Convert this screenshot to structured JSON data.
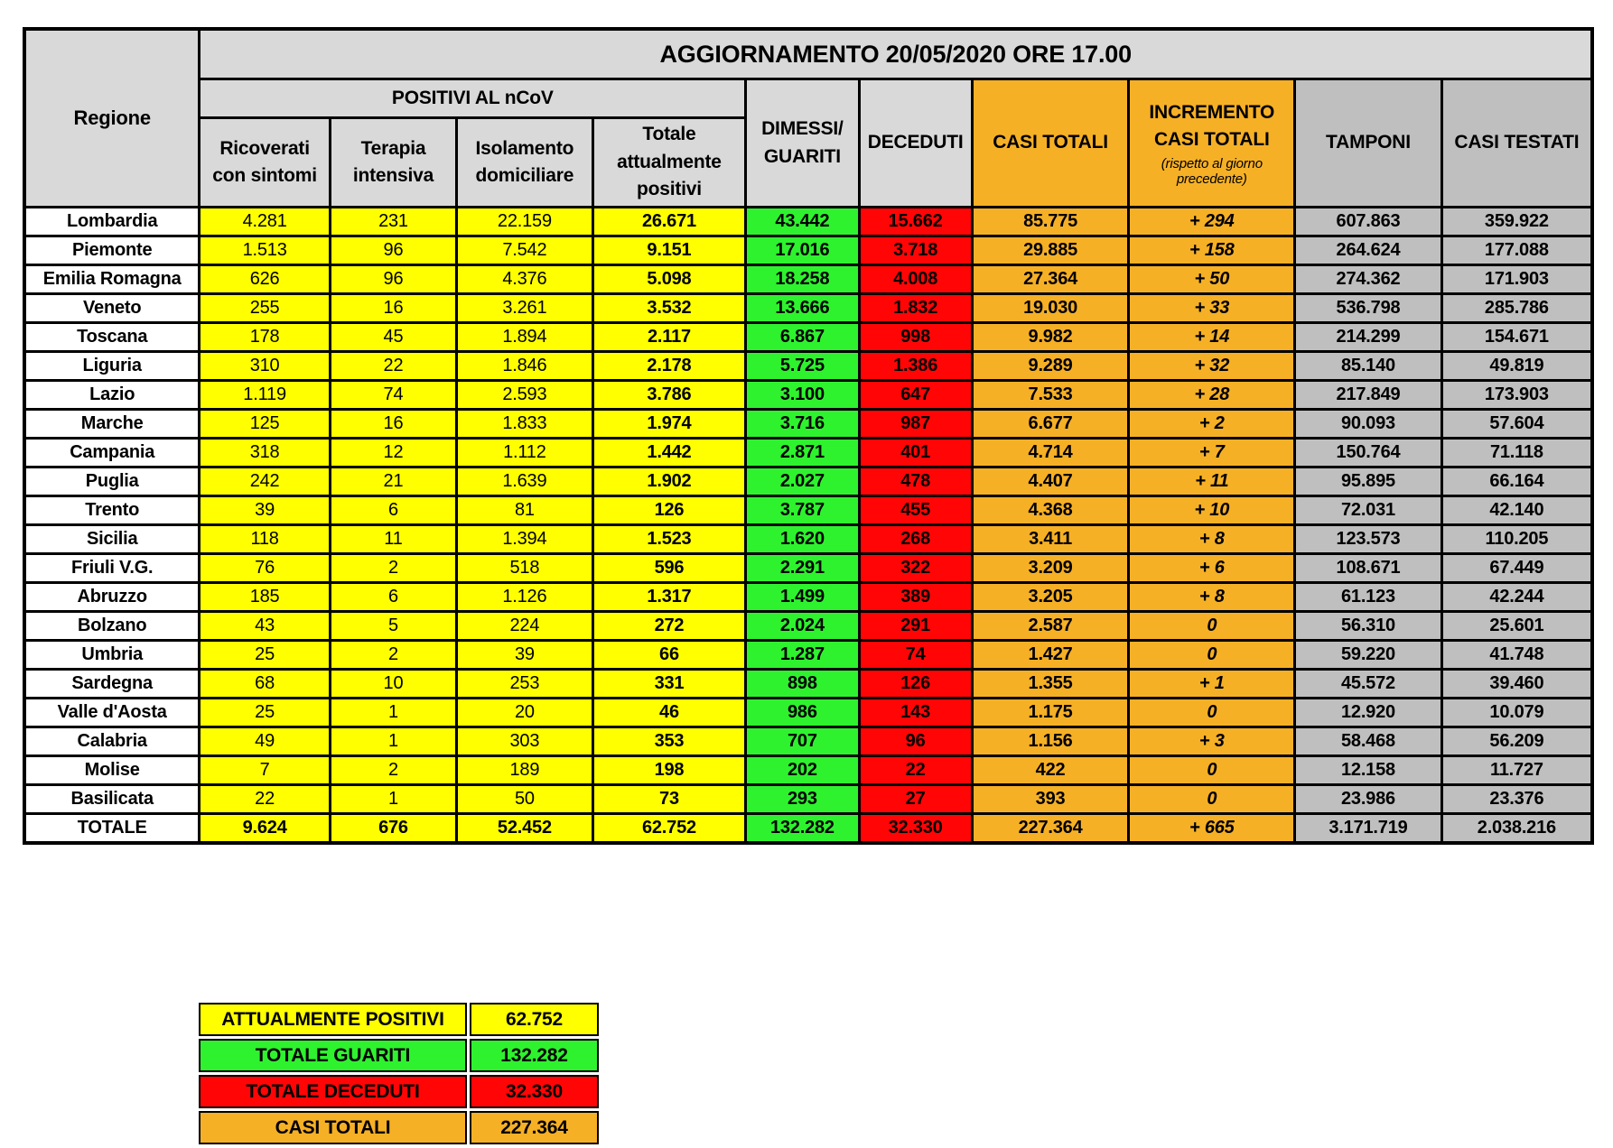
{
  "title": "AGGIORNAMENTO 20/05/2020 ORE 17.00",
  "colors": {
    "yellow": "#FFFF00",
    "green": "#2EF22E",
    "red": "#FF0505",
    "orange": "#F6B026",
    "light_gray": "#D9D9D9",
    "mid_gray": "#BFBFBF",
    "border": "#000000"
  },
  "headers": {
    "regione": "Regione",
    "positivi_group": "POSITIVI AL nCoV",
    "ricoverati": "Ricoverati con sintomi",
    "terapia": "Terapia intensiva",
    "isolamento": "Isolamento domiciliare",
    "totale_positivi": "Totale attualmente positivi",
    "dimessi": "DIMESSI/ GUARITI",
    "deceduti": "DECEDUTI",
    "casi_totali": "CASI TOTALI",
    "incremento": "INCREMENTO CASI  TOTALI",
    "incremento_note": "(rispetto al giorno precedente)",
    "tamponi": "TAMPONI",
    "casi_testati": "CASI TESTATI"
  },
  "chart_data": {
    "type": "table",
    "title": "AGGIORNAMENTO 20/05/2020 ORE 17.00",
    "columns": [
      "Regione",
      "Ricoverati con sintomi",
      "Terapia intensiva",
      "Isolamento domiciliare",
      "Totale attualmente positivi",
      "DIMESSI/GUARITI",
      "DECEDUTI",
      "CASI TOTALI",
      "INCREMENTO CASI TOTALI (rispetto al giorno precedente)",
      "TAMPONI",
      "CASI TESTATI"
    ],
    "rows": [
      {
        "regione": "Lombardia",
        "ricoverati": "4.281",
        "terapia": "231",
        "isolamento": "22.159",
        "totale_positivi": "26.671",
        "dimessi": "43.442",
        "deceduti": "15.662",
        "casi_totali": "85.775",
        "incremento": "+ 294",
        "tamponi": "607.863",
        "casi_testati": "359.922"
      },
      {
        "regione": "Piemonte",
        "ricoverati": "1.513",
        "terapia": "96",
        "isolamento": "7.542",
        "totale_positivi": "9.151",
        "dimessi": "17.016",
        "deceduti": "3.718",
        "casi_totali": "29.885",
        "incremento": "+ 158",
        "tamponi": "264.624",
        "casi_testati": "177.088"
      },
      {
        "regione": "Emilia Romagna",
        "ricoverati": "626",
        "terapia": "96",
        "isolamento": "4.376",
        "totale_positivi": "5.098",
        "dimessi": "18.258",
        "deceduti": "4.008",
        "casi_totali": "27.364",
        "incremento": "+ 50",
        "tamponi": "274.362",
        "casi_testati": "171.903"
      },
      {
        "regione": "Veneto",
        "ricoverati": "255",
        "terapia": "16",
        "isolamento": "3.261",
        "totale_positivi": "3.532",
        "dimessi": "13.666",
        "deceduti": "1.832",
        "casi_totali": "19.030",
        "incremento": "+ 33",
        "tamponi": "536.798",
        "casi_testati": "285.786"
      },
      {
        "regione": "Toscana",
        "ricoverati": "178",
        "terapia": "45",
        "isolamento": "1.894",
        "totale_positivi": "2.117",
        "dimessi": "6.867",
        "deceduti": "998",
        "casi_totali": "9.982",
        "incremento": "+ 14",
        "tamponi": "214.299",
        "casi_testati": "154.671"
      },
      {
        "regione": "Liguria",
        "ricoverati": "310",
        "terapia": "22",
        "isolamento": "1.846",
        "totale_positivi": "2.178",
        "dimessi": "5.725",
        "deceduti": "1.386",
        "casi_totali": "9.289",
        "incremento": "+ 32",
        "tamponi": "85.140",
        "casi_testati": "49.819"
      },
      {
        "regione": "Lazio",
        "ricoverati": "1.119",
        "terapia": "74",
        "isolamento": "2.593",
        "totale_positivi": "3.786",
        "dimessi": "3.100",
        "deceduti": "647",
        "casi_totali": "7.533",
        "incremento": "+ 28",
        "tamponi": "217.849",
        "casi_testati": "173.903"
      },
      {
        "regione": "Marche",
        "ricoverati": "125",
        "terapia": "16",
        "isolamento": "1.833",
        "totale_positivi": "1.974",
        "dimessi": "3.716",
        "deceduti": "987",
        "casi_totali": "6.677",
        "incremento": "+ 2",
        "tamponi": "90.093",
        "casi_testati": "57.604"
      },
      {
        "regione": "Campania",
        "ricoverati": "318",
        "terapia": "12",
        "isolamento": "1.112",
        "totale_positivi": "1.442",
        "dimessi": "2.871",
        "deceduti": "401",
        "casi_totali": "4.714",
        "incremento": "+ 7",
        "tamponi": "150.764",
        "casi_testati": "71.118"
      },
      {
        "regione": "Puglia",
        "ricoverati": "242",
        "terapia": "21",
        "isolamento": "1.639",
        "totale_positivi": "1.902",
        "dimessi": "2.027",
        "deceduti": "478",
        "casi_totali": "4.407",
        "incremento": "+ 11",
        "tamponi": "95.895",
        "casi_testati": "66.164"
      },
      {
        "regione": "Trento",
        "ricoverati": "39",
        "terapia": "6",
        "isolamento": "81",
        "totale_positivi": "126",
        "dimessi": "3.787",
        "deceduti": "455",
        "casi_totali": "4.368",
        "incremento": "+ 10",
        "tamponi": "72.031",
        "casi_testati": "42.140"
      },
      {
        "regione": "Sicilia",
        "ricoverati": "118",
        "terapia": "11",
        "isolamento": "1.394",
        "totale_positivi": "1.523",
        "dimessi": "1.620",
        "deceduti": "268",
        "casi_totali": "3.411",
        "incremento": "+ 8",
        "tamponi": "123.573",
        "casi_testati": "110.205"
      },
      {
        "regione": "Friuli V.G.",
        "ricoverati": "76",
        "terapia": "2",
        "isolamento": "518",
        "totale_positivi": "596",
        "dimessi": "2.291",
        "deceduti": "322",
        "casi_totali": "3.209",
        "incremento": "+ 6",
        "tamponi": "108.671",
        "casi_testati": "67.449"
      },
      {
        "regione": "Abruzzo",
        "ricoverati": "185",
        "terapia": "6",
        "isolamento": "1.126",
        "totale_positivi": "1.317",
        "dimessi": "1.499",
        "deceduti": "389",
        "casi_totali": "3.205",
        "incremento": "+ 8",
        "tamponi": "61.123",
        "casi_testati": "42.244"
      },
      {
        "regione": "Bolzano",
        "ricoverati": "43",
        "terapia": "5",
        "isolamento": "224",
        "totale_positivi": "272",
        "dimessi": "2.024",
        "deceduti": "291",
        "casi_totali": "2.587",
        "incremento": "0",
        "tamponi": "56.310",
        "casi_testati": "25.601"
      },
      {
        "regione": "Umbria",
        "ricoverati": "25",
        "terapia": "2",
        "isolamento": "39",
        "totale_positivi": "66",
        "dimessi": "1.287",
        "deceduti": "74",
        "casi_totali": "1.427",
        "incremento": "0",
        "tamponi": "59.220",
        "casi_testati": "41.748"
      },
      {
        "regione": "Sardegna",
        "ricoverati": "68",
        "terapia": "10",
        "isolamento": "253",
        "totale_positivi": "331",
        "dimessi": "898",
        "deceduti": "126",
        "casi_totali": "1.355",
        "incremento": "+ 1",
        "tamponi": "45.572",
        "casi_testati": "39.460"
      },
      {
        "regione": "Valle d'Aosta",
        "ricoverati": "25",
        "terapia": "1",
        "isolamento": "20",
        "totale_positivi": "46",
        "dimessi": "986",
        "deceduti": "143",
        "casi_totali": "1.175",
        "incremento": "0",
        "tamponi": "12.920",
        "casi_testati": "10.079"
      },
      {
        "regione": "Calabria",
        "ricoverati": "49",
        "terapia": "1",
        "isolamento": "303",
        "totale_positivi": "353",
        "dimessi": "707",
        "deceduti": "96",
        "casi_totali": "1.156",
        "incremento": "+ 3",
        "tamponi": "58.468",
        "casi_testati": "56.209"
      },
      {
        "regione": "Molise",
        "ricoverati": "7",
        "terapia": "2",
        "isolamento": "189",
        "totale_positivi": "198",
        "dimessi": "202",
        "deceduti": "22",
        "casi_totali": "422",
        "incremento": "0",
        "tamponi": "12.158",
        "casi_testati": "11.727"
      },
      {
        "regione": "Basilicata",
        "ricoverati": "22",
        "terapia": "1",
        "isolamento": "50",
        "totale_positivi": "73",
        "dimessi": "293",
        "deceduti": "27",
        "casi_totali": "393",
        "incremento": "0",
        "tamponi": "23.986",
        "casi_testati": "23.376"
      }
    ],
    "total_row": {
      "regione": "TOTALE",
      "ricoverati": "9.624",
      "terapia": "676",
      "isolamento": "52.452",
      "totale_positivi": "62.752",
      "dimessi": "132.282",
      "deceduti": "32.330",
      "casi_totali": "227.364",
      "incremento": "+ 665",
      "tamponi": "3.171.719",
      "casi_testati": "2.038.216"
    }
  },
  "summary": {
    "rows": [
      {
        "label": "ATTUALMENTE POSITIVI",
        "value": "62.752",
        "color_key": "yellow"
      },
      {
        "label": "TOTALE GUARITI",
        "value": "132.282",
        "color_key": "green"
      },
      {
        "label": "TOTALE DECEDUTI",
        "value": "32.330",
        "color_key": "red"
      },
      {
        "label": "CASI TOTALI",
        "value": "227.364",
        "color_key": "orange"
      }
    ]
  }
}
